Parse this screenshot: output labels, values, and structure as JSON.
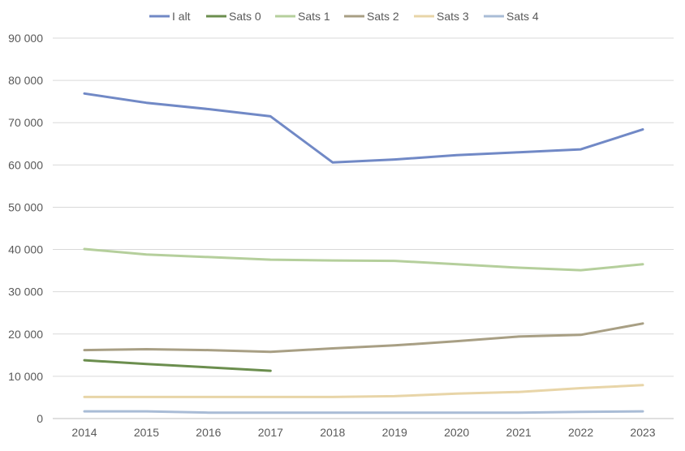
{
  "chart_data": {
    "type": "line",
    "title": "",
    "xlabel": "",
    "ylabel": "",
    "categories": [
      "2014",
      "2015",
      "2016",
      "2017",
      "2018",
      "2019",
      "2020",
      "2021",
      "2022",
      "2023"
    ],
    "ylim": [
      0,
      90000
    ],
    "y_ticks": [
      0,
      10000,
      20000,
      30000,
      40000,
      50000,
      60000,
      70000,
      80000,
      90000
    ],
    "y_tick_labels": [
      "0",
      "10 000",
      "20 000",
      "30 000",
      "40 000",
      "50 000",
      "60 000",
      "70 000",
      "80 000",
      "90 000"
    ],
    "grid": "horizontal",
    "legend_position": "top",
    "series": [
      {
        "name": "I alt",
        "color": "#7189C6",
        "values": [
          76900,
          74700,
          73200,
          71500,
          60600,
          61300,
          62300,
          63000,
          63700,
          68400
        ]
      },
      {
        "name": "Sats 0",
        "color": "#6B8E4E",
        "values": [
          13800,
          12900,
          12100,
          11300,
          null,
          null,
          null,
          null,
          null,
          null
        ]
      },
      {
        "name": "Sats 1",
        "color": "#B5CF9C",
        "values": [
          40100,
          38800,
          38200,
          37600,
          37400,
          37300,
          36500,
          35700,
          35100,
          36500
        ]
      },
      {
        "name": "Sats 2",
        "color": "#A89F84",
        "values": [
          16200,
          16400,
          16200,
          15800,
          16600,
          17300,
          18300,
          19400,
          19800,
          22500
        ]
      },
      {
        "name": "Sats 3",
        "color": "#E8D5A8",
        "values": [
          5100,
          5100,
          5100,
          5100,
          5100,
          5300,
          5900,
          6300,
          7200,
          7900
        ]
      },
      {
        "name": "Sats 4",
        "color": "#A9BCD6",
        "values": [
          1700,
          1700,
          1400,
          1400,
          1400,
          1400,
          1400,
          1400,
          1600,
          1700
        ]
      }
    ]
  }
}
